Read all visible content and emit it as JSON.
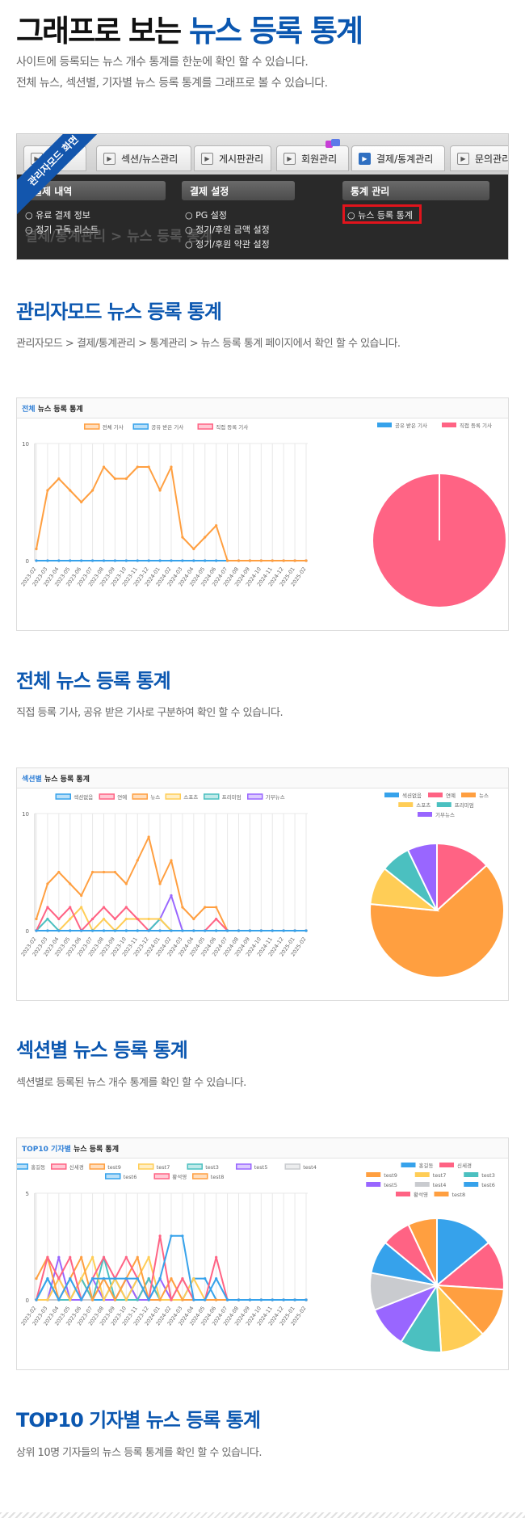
{
  "hero": {
    "title_prefix": "그래프로 보는",
    "title_accent": "뉴스 등록 통계",
    "desc_line1": "사이트에 등록되는 뉴스 개수 통계를 한눈에 확인 할 수 있습니다.",
    "desc_line2": "전체 뉴스, 섹션별, 기자별 뉴스 등록 통계를 그래프로 볼 수 있습니다."
  },
  "admin_screenshot": {
    "ribbon_label": "관리자모드 화면",
    "tabs": [
      "섹션/뉴스관리",
      "게시판관리",
      "회원관리",
      "결제/통계관리",
      "문의관리"
    ],
    "active_tab": "결제/통계관리",
    "columns": [
      {
        "header": "결제 내역",
        "items": [
          "유료 결제 정보",
          "정기 구독 리스트"
        ]
      },
      {
        "header": "결제 설정",
        "items": [
          "PG 설정",
          "정기/후원 금액 설정",
          "정기/후원 약관 설정"
        ]
      },
      {
        "header": "통계 관리",
        "items": [
          "뉴스 등록 통계"
        ]
      }
    ],
    "background_title": "결제/통계관리 > 뉴스 등록 통계"
  },
  "section1": {
    "title": "관리자모드 뉴스 등록 통계",
    "desc": "관리자모드 > 결제/통계관리 > 통계관리 > 뉴스 등록 통계 페이지에서 확인 할 수 있습니다."
  },
  "section2": {
    "title": "전체 뉴스 등록 통계",
    "desc": "직접 등록 기사, 공유 받은 기사로 구분하여 확인 할 수 있습니다."
  },
  "section3": {
    "title": "섹션별 뉴스 등록 통계",
    "desc": "섹션별로 등록된 뉴스 개수 통계를 확인 할 수 있습니다."
  },
  "section4": {
    "title": "TOP10 기자별 뉴스 등록 통계",
    "desc": "상위 10명 기자들의 뉴스 등록 통계를 확인 할 수 있습니다."
  },
  "colors": {
    "accent": "#0b57b0",
    "orange": "#ff9f40",
    "blue": "#36a2eb",
    "pink": "#ff6384",
    "yellow": "#ffcd56",
    "teal": "#4bc0c0",
    "purple": "#9966ff",
    "grey": "#c9cbcf"
  },
  "chart_data": [
    {
      "type": "line",
      "card_title_accent": "전체",
      "card_title": "뉴스 등록 통계",
      "x": [
        "2023-02",
        "2023-03",
        "2023-04",
        "2023-05",
        "2023-06",
        "2023-07",
        "2023-08",
        "2023-09",
        "2023-10",
        "2023-11",
        "2023-12",
        "2024-01",
        "2024-02",
        "2024-03",
        "2024-04",
        "2024-05",
        "2024-06",
        "2024-07",
        "2024-08",
        "2024-09",
        "2024-10",
        "2024-11",
        "2024-12",
        "2025-01",
        "2025-02"
      ],
      "ylim": [
        0,
        10
      ],
      "yticks": [
        0,
        10
      ],
      "series": [
        {
          "name": "전체 기사",
          "color": "#ff9f40",
          "values": [
            1,
            6,
            7,
            6,
            5,
            6,
            8,
            7,
            7,
            8,
            8,
            6,
            8,
            2,
            1,
            2,
            3,
            0,
            0,
            0,
            0,
            0,
            0,
            0,
            0
          ]
        },
        {
          "name": "공유 받은 기사",
          "color": "#36a2eb",
          "values": [
            0,
            0,
            0,
            0,
            0,
            0,
            0,
            0,
            0,
            0,
            0,
            0,
            0,
            0,
            0,
            0,
            0,
            0,
            0,
            0,
            0,
            0,
            0,
            0,
            0
          ]
        },
        {
          "name": "직접 등록 기사",
          "color": "#ff6384",
          "values": [
            0,
            0,
            0,
            0,
            0,
            0,
            0,
            0,
            0,
            0,
            0,
            0,
            0,
            0,
            0,
            0,
            0,
            0,
            0,
            0,
            0,
            0,
            0,
            0,
            0
          ]
        }
      ],
      "pie": {
        "labels": [
          "공유 받은 기사",
          "직접 등록 기사"
        ],
        "colors": [
          "#36a2eb",
          "#ff6384"
        ],
        "values": [
          0,
          100
        ]
      }
    },
    {
      "type": "line",
      "card_title_accent": "섹션별",
      "card_title": "뉴스 등록 통계",
      "x": [
        "2023-02",
        "2023-03",
        "2023-04",
        "2023-05",
        "2023-06",
        "2023-07",
        "2023-08",
        "2023-09",
        "2023-10",
        "2023-11",
        "2023-12",
        "2024-01",
        "2024-02",
        "2024-03",
        "2024-04",
        "2024-05",
        "2024-06",
        "2024-07",
        "2024-08",
        "2024-09",
        "2024-10",
        "2024-11",
        "2024-12",
        "2025-01",
        "2025-02"
      ],
      "ylim": [
        0,
        10
      ],
      "yticks": [
        0,
        10
      ],
      "series": [
        {
          "name": "섹션없음",
          "color": "#36a2eb",
          "values": [
            0,
            0,
            0,
            0,
            0,
            0,
            0,
            0,
            0,
            0,
            0,
            0,
            0,
            0,
            0,
            0,
            0,
            0,
            0,
            0,
            0,
            0,
            0,
            0,
            0
          ]
        },
        {
          "name": "연예",
          "color": "#ff6384",
          "values": [
            0,
            2,
            1,
            2,
            0,
            1,
            2,
            1,
            2,
            1,
            0,
            0,
            0,
            0,
            0,
            0,
            1,
            0,
            0,
            0,
            0,
            0,
            0,
            0,
            0
          ]
        },
        {
          "name": "뉴스",
          "color": "#ff9f40",
          "values": [
            1,
            4,
            5,
            4,
            3,
            5,
            5,
            5,
            4,
            6,
            8,
            4,
            6,
            2,
            1,
            2,
            2,
            0,
            0,
            0,
            0,
            0,
            0,
            0,
            0
          ]
        },
        {
          "name": "스포츠",
          "color": "#ffcd56",
          "values": [
            0,
            0,
            0,
            1,
            2,
            0,
            1,
            0,
            1,
            1,
            1,
            1,
            0,
            0,
            0,
            0,
            0,
            0,
            0,
            0,
            0,
            0,
            0,
            0,
            0
          ]
        },
        {
          "name": "프리미엄",
          "color": "#4bc0c0",
          "values": [
            0,
            1,
            0,
            0,
            0,
            0,
            0,
            0,
            0,
            0,
            0,
            1,
            0,
            0,
            0,
            0,
            0,
            0,
            0,
            0,
            0,
            0,
            0,
            0,
            0
          ]
        },
        {
          "name": "기부뉴스",
          "color": "#9966ff",
          "values": [
            0,
            0,
            0,
            0,
            0,
            0,
            0,
            0,
            0,
            0,
            0,
            1,
            3,
            0,
            0,
            0,
            0,
            0,
            0,
            0,
            0,
            0,
            0,
            0,
            0
          ]
        }
      ],
      "pie": {
        "labels": [
          "섹션없음",
          "연예",
          "뉴스",
          "스포츠",
          "프리미엄",
          "기부뉴스"
        ],
        "colors": [
          "#36a2eb",
          "#ff6384",
          "#ff9f40",
          "#ffcd56",
          "#4bc0c0",
          "#9966ff"
        ],
        "values": [
          0,
          13,
          62,
          9,
          7,
          7
        ]
      }
    },
    {
      "type": "line",
      "card_title_accent": "TOP10 기자별",
      "card_title": "뉴스 등록 통계",
      "x": [
        "2023-02",
        "2023-03",
        "2023-04",
        "2023-05",
        "2023-06",
        "2023-07",
        "2023-08",
        "2023-09",
        "2023-10",
        "2023-11",
        "2023-12",
        "2024-01",
        "2024-02",
        "2024-03",
        "2024-04",
        "2024-05",
        "2024-06",
        "2024-07",
        "2024-08",
        "2024-09",
        "2024-10",
        "2024-11",
        "2024-12",
        "2025-01",
        "2025-02"
      ],
      "ylim": [
        0,
        5
      ],
      "yticks": [
        0,
        5
      ],
      "series": [
        {
          "name": "홍길동",
          "color": "#36a2eb",
          "values": [
            0,
            1,
            0,
            1,
            0,
            1,
            1,
            1,
            1,
            1,
            0,
            1,
            3,
            3,
            0,
            0,
            1,
            0,
            0,
            0,
            0,
            0,
            0,
            0,
            0
          ]
        },
        {
          "name": "신세경",
          "color": "#ff6384",
          "values": [
            0,
            2,
            1,
            2,
            0,
            1,
            2,
            1,
            2,
            1,
            0,
            3,
            0,
            1,
            0,
            0,
            2,
            0,
            0,
            0,
            0,
            0,
            0,
            0,
            0
          ]
        },
        {
          "name": "test9",
          "color": "#ff9f40",
          "values": [
            1,
            2,
            0,
            1,
            2,
            0,
            1,
            0,
            1,
            2,
            0,
            0,
            1,
            0,
            0,
            0,
            0,
            0,
            0,
            0,
            0,
            0,
            0,
            0,
            0
          ]
        },
        {
          "name": "test7",
          "color": "#ffcd56",
          "values": [
            0,
            0,
            1,
            0,
            1,
            2,
            0,
            1,
            0,
            1,
            2,
            0,
            0,
            0,
            1,
            0,
            0,
            0,
            0,
            0,
            0,
            0,
            0,
            0,
            0
          ]
        },
        {
          "name": "test3",
          "color": "#4bc0c0",
          "values": [
            0,
            1,
            0,
            0,
            1,
            0,
            2,
            0,
            0,
            0,
            1,
            0,
            0,
            0,
            0,
            0,
            0,
            0,
            0,
            0,
            0,
            0,
            0,
            0,
            0
          ]
        },
        {
          "name": "test5",
          "color": "#9966ff",
          "values": [
            0,
            0,
            2,
            0,
            0,
            1,
            0,
            0,
            1,
            0,
            0,
            1,
            0,
            0,
            0,
            0,
            0,
            0,
            0,
            0,
            0,
            0,
            0,
            0,
            0
          ]
        },
        {
          "name": "test4",
          "color": "#c9cbcf",
          "values": [
            0,
            0,
            0,
            1,
            0,
            0,
            1,
            0,
            0,
            1,
            0,
            0,
            0,
            1,
            0,
            0,
            0,
            0,
            0,
            0,
            0,
            0,
            0,
            0,
            0
          ]
        },
        {
          "name": "test6",
          "color": "#36a2eb",
          "values": [
            0,
            0,
            0,
            0,
            0,
            0,
            0,
            1,
            0,
            1,
            0,
            0,
            0,
            0,
            1,
            1,
            0,
            0,
            0,
            0,
            0,
            0,
            0,
            0,
            0
          ]
        },
        {
          "name": "황석영",
          "color": "#ff6384",
          "values": [
            0,
            0,
            1,
            0,
            0,
            0,
            0,
            0,
            0,
            0,
            1,
            0,
            0,
            0,
            0,
            0,
            0,
            0,
            0,
            0,
            0,
            0,
            0,
            0,
            0
          ]
        },
        {
          "name": "test8",
          "color": "#ff9f40",
          "values": [
            0,
            0,
            0,
            0,
            1,
            0,
            0,
            0,
            1,
            0,
            0,
            0,
            0,
            0,
            0,
            0,
            0,
            0,
            0,
            0,
            0,
            0,
            0,
            0,
            0
          ]
        }
      ],
      "pie": {
        "labels": [
          "홍길동",
          "신세경",
          "test9",
          "test7",
          "test3",
          "test5",
          "test4",
          "test6",
          "황석영",
          "test8"
        ],
        "colors": [
          "#36a2eb",
          "#ff6384",
          "#ff9f40",
          "#ffcd56",
          "#4bc0c0",
          "#9966ff",
          "#c9cbcf",
          "#36a2eb",
          "#ff6384",
          "#ff9f40"
        ],
        "values": [
          14,
          12,
          12,
          11,
          10,
          10,
          9,
          8,
          7,
          7
        ]
      }
    }
  ]
}
